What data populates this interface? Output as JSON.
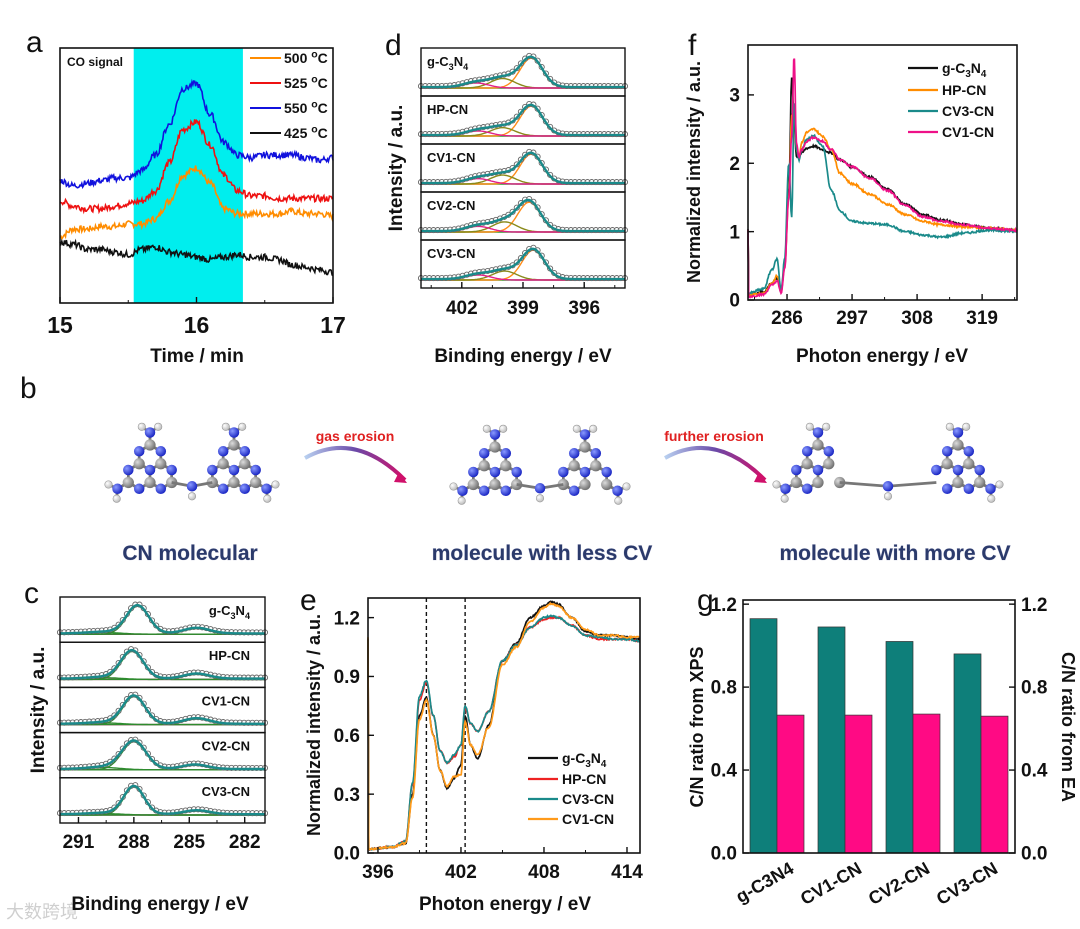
{
  "figure_panels": [
    "a",
    "b",
    "c",
    "d",
    "e",
    "f",
    "g"
  ],
  "scheme": {
    "letter": "b",
    "arrow_1_label": "gas erosion",
    "arrow_2_label": "further erosion",
    "captions": [
      "CN molecular",
      "molecule with less CV",
      "molecule with more CV"
    ],
    "atom_colors": {
      "N": "#1f2fd6",
      "C": "#8a8a8a",
      "H": "#f4f4f4"
    }
  },
  "watermark": "大数跨境",
  "chart_data": [
    {
      "panel": "a",
      "type": "line",
      "title": "",
      "annotation": "CO signal",
      "xlabel": "Time / min",
      "ylabel": "",
      "xlim": [
        15,
        17
      ],
      "xticks": [
        15,
        16,
        17
      ],
      "ylim": [
        0,
        1
      ],
      "highlight_range": [
        15.54,
        16.34
      ],
      "highlight_color": "#00eeee",
      "legend_placement": "top-right",
      "x": [
        15.0,
        15.1,
        15.2,
        15.3,
        15.4,
        15.5,
        15.6,
        15.7,
        15.8,
        15.9,
        16.0,
        16.1,
        16.2,
        16.3,
        16.4,
        16.5,
        16.6,
        16.7,
        16.8,
        16.9,
        17.0
      ],
      "series": [
        {
          "name": "500 °C",
          "color": "#ff8c00",
          "values": [
            0.26,
            0.29,
            0.29,
            0.3,
            0.3,
            0.31,
            0.31,
            0.33,
            0.4,
            0.5,
            0.53,
            0.47,
            0.37,
            0.35,
            0.35,
            0.35,
            0.35,
            0.36,
            0.35,
            0.35,
            0.34
          ]
        },
        {
          "name": "525 °C",
          "color": "#ee1111",
          "values": [
            0.4,
            0.38,
            0.37,
            0.37,
            0.38,
            0.39,
            0.4,
            0.44,
            0.55,
            0.68,
            0.71,
            0.62,
            0.5,
            0.44,
            0.42,
            0.42,
            0.41,
            0.41,
            0.41,
            0.41,
            0.41
          ]
        },
        {
          "name": "550 °C",
          "color": "#1111dd",
          "values": [
            0.48,
            0.46,
            0.47,
            0.48,
            0.49,
            0.49,
            0.52,
            0.58,
            0.7,
            0.84,
            0.86,
            0.74,
            0.63,
            0.58,
            0.57,
            0.58,
            0.58,
            0.58,
            0.57,
            0.56,
            0.57
          ]
        },
        {
          "name": "425 °C",
          "color": "#111111",
          "values": [
            0.24,
            0.23,
            0.21,
            0.21,
            0.2,
            0.19,
            0.21,
            0.22,
            0.2,
            0.19,
            0.18,
            0.17,
            0.18,
            0.19,
            0.18,
            0.18,
            0.17,
            0.15,
            0.14,
            0.13,
            0.12
          ]
        }
      ]
    },
    {
      "panel": "d",
      "type": "line",
      "title": "",
      "xlabel": "Binding energy / eV",
      "ylabel": "Intensity / a.u.",
      "xlim": [
        404,
        394
      ],
      "xticks": [
        402,
        399,
        396
      ],
      "envelope_color": "#1a8a8a",
      "baseline_color": "#2e9a2e",
      "samples": [
        {
          "label": "g-C3N4",
          "peaks": [
            {
              "center": 398.6,
              "height": 1.0,
              "width": 0.55,
              "color": "#ff8c1a"
            },
            {
              "center": 400.0,
              "height": 0.32,
              "width": 0.6,
              "color": "#8a8a1a"
            },
            {
              "center": 401.3,
              "height": 0.17,
              "width": 0.6,
              "color": "#e0208a"
            }
          ]
        },
        {
          "label": "HP-CN",
          "peaks": [
            {
              "center": 398.6,
              "height": 1.0,
              "width": 0.55,
              "color": "#ff8c1a"
            },
            {
              "center": 400.0,
              "height": 0.28,
              "width": 0.6,
              "color": "#8a8a1a"
            },
            {
              "center": 401.2,
              "height": 0.17,
              "width": 0.6,
              "color": "#e0208a"
            }
          ]
        },
        {
          "label": "CV1-CN",
          "peaks": [
            {
              "center": 398.6,
              "height": 1.0,
              "width": 0.55,
              "color": "#ff8c1a"
            },
            {
              "center": 400.0,
              "height": 0.3,
              "width": 0.6,
              "color": "#8a8a1a"
            },
            {
              "center": 401.2,
              "height": 0.18,
              "width": 0.6,
              "color": "#e0208a"
            }
          ]
        },
        {
          "label": "CV2-CN",
          "peaks": [
            {
              "center": 398.7,
              "height": 1.0,
              "width": 0.55,
              "color": "#ff8c1a"
            },
            {
              "center": 399.9,
              "height": 0.34,
              "width": 0.6,
              "color": "#8a8a1a"
            },
            {
              "center": 401.2,
              "height": 0.19,
              "width": 0.6,
              "color": "#e0208a"
            }
          ]
        },
        {
          "label": "CV3-CN",
          "peaks": [
            {
              "center": 398.5,
              "height": 1.0,
              "width": 0.55,
              "color": "#ff8c1a"
            },
            {
              "center": 399.9,
              "height": 0.3,
              "width": 0.6,
              "color": "#8a8a1a"
            },
            {
              "center": 401.2,
              "height": 0.17,
              "width": 0.6,
              "color": "#e0208a"
            }
          ]
        }
      ]
    },
    {
      "panel": "f",
      "type": "line",
      "title": "",
      "xlabel": "Photon energy / eV",
      "ylabel": "Normalized intensity / a.u.",
      "xlim": [
        279.4,
        324.9
      ],
      "xticks": [
        286,
        297,
        308,
        319
      ],
      "ylim": [
        0,
        3.73
      ],
      "yticks": [
        0,
        1,
        2,
        3
      ],
      "legend_placement": "top-right",
      "x": [
        279.5,
        282,
        283.5,
        284.3,
        285,
        285.6,
        286.3,
        286.8,
        287.2,
        287.6,
        288.0,
        288.5,
        289.3,
        290.5,
        292,
        293.5,
        295,
        297,
        300,
        303,
        306,
        309,
        312,
        316,
        320,
        324.9
      ],
      "series": [
        {
          "name": "g-C3N4",
          "color": "#111111",
          "values": [
            0.08,
            0.12,
            0.25,
            0.32,
            0.12,
            0.5,
            1.6,
            3.25,
            2.6,
            2.1,
            2.1,
            2.15,
            2.22,
            2.25,
            2.2,
            2.15,
            2.05,
            1.95,
            1.8,
            1.62,
            1.4,
            1.25,
            1.17,
            1.1,
            1.05,
            1.02
          ]
        },
        {
          "name": "HP-CN",
          "color": "#ff8c00",
          "values": [
            0.07,
            0.1,
            0.25,
            0.35,
            0.15,
            0.5,
            1.5,
            2.7,
            2.8,
            2.2,
            2.1,
            2.3,
            2.45,
            2.5,
            2.4,
            2.2,
            1.85,
            1.7,
            1.55,
            1.4,
            1.25,
            1.15,
            1.1,
            1.07,
            1.05,
            1.02
          ]
        },
        {
          "name": "CV3-CN",
          "color": "#1a8a8a",
          "values": [
            0.1,
            0.16,
            0.45,
            0.6,
            0.15,
            0.6,
            2.0,
            1.2,
            2.9,
            2.2,
            2.05,
            2.2,
            2.35,
            2.4,
            2.25,
            1.6,
            1.3,
            1.15,
            1.12,
            1.1,
            1.0,
            0.95,
            0.92,
            0.98,
            1.02,
            1.0
          ]
        },
        {
          "name": "CV1-CN",
          "color": "#ee1188",
          "values": [
            0.05,
            0.08,
            0.22,
            0.28,
            0.1,
            0.45,
            1.5,
            2.4,
            3.58,
            2.3,
            2.1,
            2.2,
            2.32,
            2.38,
            2.32,
            2.2,
            2.05,
            1.95,
            1.78,
            1.6,
            1.38,
            1.22,
            1.15,
            1.1,
            1.05,
            1.02
          ]
        }
      ]
    },
    {
      "panel": "c",
      "type": "line",
      "title": "",
      "xlabel": "Binding energy / eV",
      "ylabel": "Intensity / a.u.",
      "xlim": [
        292.0,
        280.9
      ],
      "xticks": [
        291,
        288,
        285,
        282
      ],
      "envelope_color": "#1a8a8a",
      "baseline_color": "#e0208a",
      "samples": [
        {
          "label": "g-C3N4",
          "peaks": [
            {
              "center": 287.8,
              "height": 1.0,
              "width": 0.6,
              "color": "#2e8b2e"
            },
            {
              "center": 284.6,
              "height": 0.2,
              "width": 0.7,
              "color": "#2e8b2e"
            },
            {
              "center": 289.6,
              "height": 0.06,
              "width": 0.9,
              "color": "#2e8b2e"
            }
          ]
        },
        {
          "label": "HP-CN",
          "peaks": [
            {
              "center": 288.1,
              "height": 1.0,
              "width": 0.6,
              "color": "#2e8b2e"
            },
            {
              "center": 284.6,
              "height": 0.18,
              "width": 0.7,
              "color": "#2e8b2e"
            },
            {
              "center": 289.6,
              "height": 0.06,
              "width": 0.9,
              "color": "#2e8b2e"
            }
          ]
        },
        {
          "label": "CV1-CN",
          "peaks": [
            {
              "center": 288.0,
              "height": 1.0,
              "width": 0.6,
              "color": "#2e8b2e"
            },
            {
              "center": 284.6,
              "height": 0.2,
              "width": 0.7,
              "color": "#2e8b2e"
            },
            {
              "center": 289.6,
              "height": 0.06,
              "width": 0.9,
              "color": "#2e8b2e"
            }
          ]
        },
        {
          "label": "CV2-CN",
          "peaks": [
            {
              "center": 288.0,
              "height": 1.0,
              "width": 0.65,
              "color": "#2e8b2e"
            },
            {
              "center": 284.7,
              "height": 0.16,
              "width": 0.7,
              "color": "#2e8b2e"
            },
            {
              "center": 289.6,
              "height": 0.08,
              "width": 0.9,
              "color": "#2e8b2e"
            }
          ]
        },
        {
          "label": "CV3-CN",
          "peaks": [
            {
              "center": 288.0,
              "height": 1.0,
              "width": 0.55,
              "color": "#2e8b2e"
            },
            {
              "center": 284.6,
              "height": 0.14,
              "width": 0.7,
              "color": "#2e8b2e"
            },
            {
              "center": 289.6,
              "height": 0.05,
              "width": 0.9,
              "color": "#2e8b2e"
            }
          ]
        }
      ]
    },
    {
      "panel": "e",
      "type": "line",
      "title": "",
      "xlabel": "Photon energy / eV",
      "ylabel": "Normalized intensity / a.u.",
      "xlim": [
        395.28,
        414.94
      ],
      "xticks": [
        396,
        402,
        408,
        414
      ],
      "ylim": [
        0,
        1.3
      ],
      "yticks": [
        0.0,
        0.3,
        0.6,
        0.9,
        1.2
      ],
      "reference_lines": [
        399.5,
        402.3
      ],
      "legend_placement": "bottom-right",
      "x": [
        395.3,
        397,
        398,
        398.5,
        399.0,
        399.5,
        400,
        400.5,
        401,
        401.5,
        402,
        402.3,
        402.7,
        403.2,
        404,
        405,
        406,
        407,
        408,
        408.5,
        409,
        410,
        411,
        412,
        413,
        414,
        414.9
      ],
      "series": [
        {
          "name": "g-C3N4",
          "color": "#111111",
          "values": [
            0.02,
            0.03,
            0.05,
            0.3,
            0.7,
            0.79,
            0.6,
            0.42,
            0.33,
            0.38,
            0.45,
            0.7,
            0.55,
            0.48,
            0.65,
            0.98,
            1.07,
            1.2,
            1.26,
            1.28,
            1.27,
            1.2,
            1.13,
            1.11,
            1.11,
            1.1,
            1.09
          ]
        },
        {
          "name": "HP-CN",
          "color": "#ee2222",
          "values": [
            0.02,
            0.03,
            0.06,
            0.35,
            0.78,
            0.87,
            0.7,
            0.52,
            0.46,
            0.49,
            0.55,
            0.74,
            0.66,
            0.62,
            0.72,
            0.98,
            1.06,
            1.15,
            1.19,
            1.2,
            1.2,
            1.16,
            1.11,
            1.09,
            1.09,
            1.09,
            1.08
          ]
        },
        {
          "name": "CV3-CN",
          "color": "#1a8a8a",
          "values": [
            0.02,
            0.03,
            0.06,
            0.36,
            0.8,
            0.88,
            0.7,
            0.52,
            0.46,
            0.5,
            0.55,
            0.75,
            0.66,
            0.62,
            0.72,
            0.98,
            1.06,
            1.15,
            1.2,
            1.21,
            1.2,
            1.16,
            1.11,
            1.1,
            1.09,
            1.09,
            1.08
          ]
        },
        {
          "name": "CV1-CN",
          "color": "#ff9a1a",
          "values": [
            0.02,
            0.03,
            0.05,
            0.28,
            0.68,
            0.78,
            0.6,
            0.42,
            0.34,
            0.39,
            0.4,
            0.67,
            0.55,
            0.5,
            0.64,
            0.96,
            1.05,
            1.18,
            1.25,
            1.27,
            1.26,
            1.2,
            1.14,
            1.11,
            1.11,
            1.1,
            1.1
          ]
        }
      ]
    },
    {
      "panel": "g",
      "type": "bar",
      "title": "",
      "xlabel": "",
      "ylabel": "C/N ratio from XPS",
      "ylabel_right": "C/N ratio from EA",
      "ylim": [
        0,
        1.22
      ],
      "yticks": [
        0.0,
        0.4,
        0.8,
        1.2
      ],
      "categories": [
        "g-C3N4",
        "CV1-CN",
        "CV2-CN",
        "CV3-CN"
      ],
      "series": [
        {
          "name": "C/N ratio from XPS",
          "axis": "left",
          "color": "#0e7f7a",
          "values": [
            1.13,
            1.09,
            1.02,
            0.96
          ]
        },
        {
          "name": "C/N ratio from EA",
          "axis": "right",
          "color": "#ff0a84",
          "values": [
            0.665,
            0.665,
            0.67,
            0.66
          ]
        }
      ]
    }
  ]
}
